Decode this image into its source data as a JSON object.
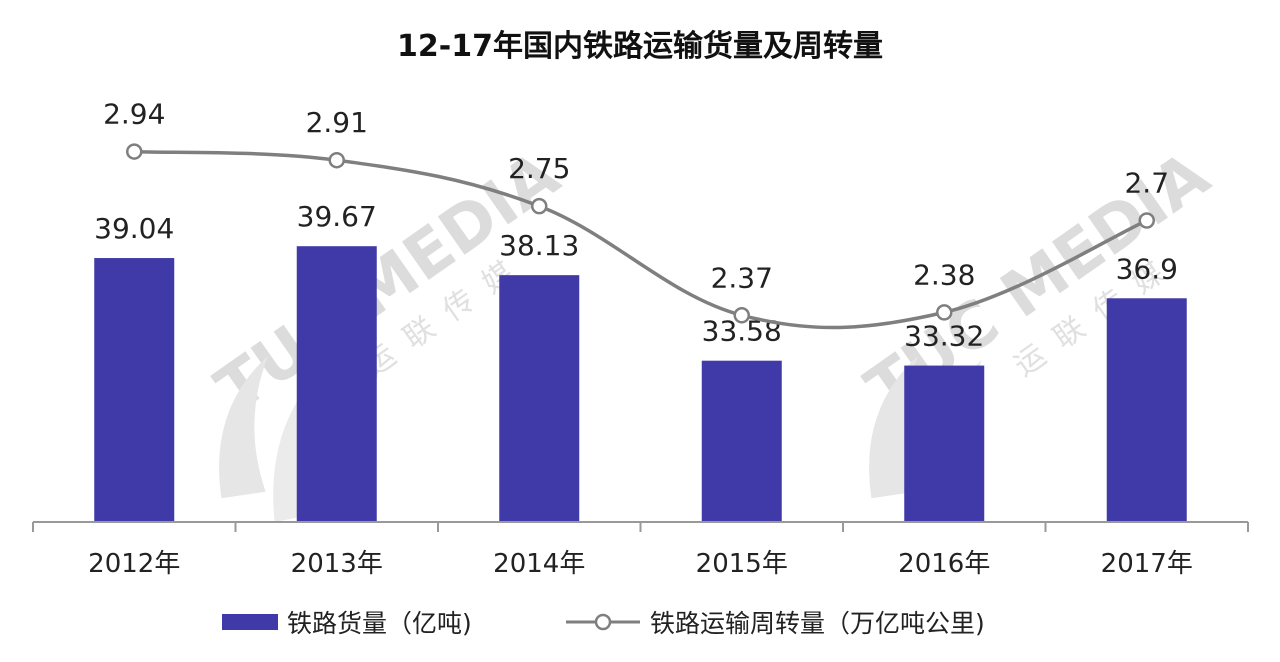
{
  "chart_data": {
    "type": "bar",
    "title": "12-17年国内铁路运输货量及周转量",
    "categories": [
      "2012年",
      "2013年",
      "2014年",
      "2015年",
      "2016年",
      "2017年"
    ],
    "series": [
      {
        "name": "铁路货量（亿吨)",
        "type": "bar",
        "color": "#3f3aa8",
        "values": [
          39.04,
          39.67,
          38.13,
          33.58,
          33.32,
          36.9
        ],
        "labels": [
          "39.04",
          "39.67",
          "38.13",
          "33.58",
          "33.32",
          "36.9"
        ]
      },
      {
        "name": "铁路运输周转量（万亿吨公里)",
        "type": "line",
        "color": "#7f7f7f",
        "marker": "hollow-circle",
        "values": [
          2.94,
          2.91,
          2.75,
          2.37,
          2.38,
          2.7
        ],
        "labels": [
          "2.94",
          "2.91",
          "2.75",
          "2.37",
          "2.38",
          "2.7"
        ]
      }
    ],
    "bar_axis_range": [
      25,
      40
    ],
    "line_axis_range": [
      1.65,
      3.05
    ],
    "xlabel": "",
    "ylabel": "",
    "grid": false,
    "legend_position": "bottom",
    "watermark": [
      "TUC MEDIA",
      "运联传媒"
    ]
  }
}
